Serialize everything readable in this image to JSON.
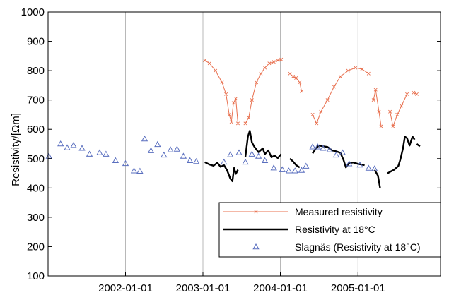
{
  "chart_data": {
    "type": "line",
    "title": "",
    "xlabel": "",
    "ylabel": "Resistivity/[Ωm]",
    "ylim": [
      100,
      1000
    ],
    "xlim": [
      "2001-01-01",
      "2006-01-25"
    ],
    "x_ticks": [
      "2002-01-01",
      "2003-01-01",
      "2004-01-01",
      "2005-01-01"
    ],
    "y_ticks": [
      100,
      200,
      300,
      400,
      500,
      600,
      700,
      800,
      900,
      1000
    ],
    "grid": "vertical",
    "legend_position": "bottom-right",
    "legend": [
      {
        "label": "Measured resistivity",
        "color": "#e8704f",
        "marker": "x"
      },
      {
        "label": "Resistivity at 18°C",
        "color": "#000000",
        "marker": "none"
      },
      {
        "label": "Slagnäs (Resistivity at 18°C)",
        "color": "#5a6fbf",
        "marker": "triangle"
      }
    ],
    "series": [
      {
        "name": "Measured resistivity",
        "color": "#e8704f",
        "style": "line-x",
        "segments": [
          [
            [
              "2003-01-10",
              835
            ],
            [
              "2003-02-01",
              825
            ],
            [
              "2003-03-01",
              800
            ],
            [
              "2003-04-01",
              760
            ],
            [
              "2003-04-20",
              720
            ],
            [
              "2003-05-05",
              650
            ],
            [
              "2003-05-15",
              625
            ],
            [
              "2003-05-25",
              690
            ],
            [
              "2003-06-05",
              705
            ],
            [
              "2003-06-15",
              620
            ]
          ],
          [
            [
              "2003-07-20",
              620
            ],
            [
              "2003-08-05",
              640
            ],
            [
              "2003-08-20",
              700
            ],
            [
              "2003-09-10",
              760
            ],
            [
              "2003-10-01",
              790
            ],
            [
              "2003-10-20",
              810
            ],
            [
              "2003-11-10",
              825
            ],
            [
              "2003-12-01",
              830
            ],
            [
              "2003-12-20",
              835
            ],
            [
              "2004-01-05",
              838
            ]
          ],
          [
            [
              "2004-02-15",
              790
            ],
            [
              "2004-03-01",
              780
            ],
            [
              "2004-03-15",
              775
            ],
            [
              "2004-04-01",
              760
            ],
            [
              "2004-04-10",
              730
            ]
          ],
          [
            [
              "2004-06-01",
              650
            ],
            [
              "2004-06-20",
              620
            ],
            [
              "2004-07-10",
              660
            ],
            [
              "2004-08-10",
              700
            ],
            [
              "2004-09-10",
              745
            ],
            [
              "2004-10-10",
              780
            ],
            [
              "2004-11-15",
              800
            ],
            [
              "2004-12-20",
              810
            ],
            [
              "2005-01-20",
              805
            ],
            [
              "2005-02-20",
              790
            ]
          ],
          [
            [
              "2005-03-15",
              700
            ],
            [
              "2005-03-25",
              735
            ],
            [
              "2005-04-10",
              660
            ],
            [
              "2005-04-20",
              610
            ]
          ],
          [
            [
              "2005-06-01",
              660
            ],
            [
              "2005-06-15",
              610
            ],
            [
              "2005-07-05",
              650
            ],
            [
              "2005-07-25",
              680
            ],
            [
              "2005-08-20",
              720
            ]
          ],
          [
            [
              "2005-09-20",
              725
            ],
            [
              "2005-10-05",
              720
            ]
          ]
        ]
      },
      {
        "name": "Resistivity at 18°C",
        "color": "#000000",
        "style": "line",
        "segments": [
          [
            [
              "2003-01-10",
              488
            ],
            [
              "2003-02-01",
              480
            ],
            [
              "2003-02-20",
              476
            ],
            [
              "2003-03-10",
              486
            ],
            [
              "2003-03-25",
              472
            ],
            [
              "2003-04-10",
              478
            ],
            [
              "2003-04-25",
              460
            ],
            [
              "2003-05-10",
              432
            ],
            [
              "2003-05-20",
              423
            ],
            [
              "2003-05-28",
              468
            ],
            [
              "2003-06-05",
              448
            ],
            [
              "2003-06-15",
              462
            ]
          ],
          [
            [
              "2003-07-20",
              505
            ],
            [
              "2003-08-01",
              575
            ],
            [
              "2003-08-10",
              595
            ],
            [
              "2003-08-20",
              555
            ],
            [
              "2003-09-01",
              540
            ],
            [
              "2003-09-20",
              522
            ],
            [
              "2003-10-10",
              535
            ],
            [
              "2003-10-20",
              515
            ],
            [
              "2003-11-05",
              528
            ],
            [
              "2003-11-20",
              505
            ],
            [
              "2003-12-05",
              510
            ],
            [
              "2003-12-20",
              502
            ],
            [
              "2004-01-05",
              515
            ]
          ],
          [
            [
              "2004-02-15",
              500
            ],
            [
              "2004-03-01",
              490
            ],
            [
              "2004-03-15",
              478
            ],
            [
              "2004-04-01",
              470
            ]
          ],
          [
            [
              "2004-06-01",
              518
            ],
            [
              "2004-06-15",
              533
            ],
            [
              "2004-07-01",
              545
            ],
            [
              "2004-07-20",
              542
            ],
            [
              "2004-08-10",
              540
            ],
            [
              "2004-09-01",
              528
            ],
            [
              "2004-09-20",
              525
            ],
            [
              "2004-10-10",
              520
            ],
            [
              "2004-10-25",
              495
            ],
            [
              "2004-11-05",
              470
            ],
            [
              "2004-11-20",
              485
            ],
            [
              "2004-12-10",
              487
            ],
            [
              "2005-01-01",
              482
            ],
            [
              "2005-02-01",
              478
            ]
          ],
          [
            [
              "2005-03-20",
              462
            ],
            [
              "2005-04-05",
              442
            ],
            [
              "2005-04-15",
              400
            ]
          ],
          [
            [
              "2005-05-20",
              450
            ],
            [
              "2005-06-01",
              455
            ],
            [
              "2005-06-20",
              462
            ],
            [
              "2005-07-10",
              475
            ],
            [
              "2005-07-20",
              498
            ],
            [
              "2005-08-01",
              535
            ],
            [
              "2005-08-10",
              575
            ],
            [
              "2005-08-20",
              570
            ],
            [
              "2005-09-01",
              545
            ],
            [
              "2005-09-15",
              575
            ],
            [
              "2005-09-25",
              565
            ]
          ],
          [
            [
              "2005-10-05",
              550
            ],
            [
              "2005-10-20",
              542
            ]
          ]
        ]
      },
      {
        "name": "Slagnäs (Resistivity at 18°C)",
        "color": "#5a6fbf",
        "style": "triangle-markers",
        "points": [
          [
            "2001-01-05",
            508
          ],
          [
            "2001-03-01",
            550
          ],
          [
            "2001-04-01",
            537
          ],
          [
            "2001-05-01",
            545
          ],
          [
            "2001-06-10",
            535
          ],
          [
            "2001-07-15",
            515
          ],
          [
            "2001-09-01",
            520
          ],
          [
            "2001-10-01",
            515
          ],
          [
            "2001-11-15",
            493
          ],
          [
            "2002-01-01",
            483
          ],
          [
            "2002-02-10",
            458
          ],
          [
            "2002-03-10",
            457
          ],
          [
            "2002-04-01",
            567
          ],
          [
            "2002-05-01",
            527
          ],
          [
            "2002-06-01",
            548
          ],
          [
            "2002-07-01",
            512
          ],
          [
            "2002-08-01",
            530
          ],
          [
            "2002-09-01",
            532
          ],
          [
            "2002-10-01",
            508
          ],
          [
            "2002-11-01",
            493
          ],
          [
            "2002-12-01",
            490
          ],
          [
            "2003-04-10",
            488
          ],
          [
            "2003-05-10",
            513
          ],
          [
            "2003-06-20",
            520
          ],
          [
            "2003-07-20",
            488
          ],
          [
            "2003-08-20",
            515
          ],
          [
            "2003-09-20",
            508
          ],
          [
            "2003-10-20",
            493
          ],
          [
            "2003-12-01",
            468
          ],
          [
            "2004-01-10",
            462
          ],
          [
            "2004-02-10",
            458
          ],
          [
            "2004-03-10",
            458
          ],
          [
            "2004-04-10",
            460
          ],
          [
            "2004-05-01",
            474
          ],
          [
            "2004-06-01",
            540
          ],
          [
            "2004-06-25",
            540
          ],
          [
            "2004-07-20",
            535
          ],
          [
            "2004-08-20",
            530
          ],
          [
            "2004-09-20",
            512
          ],
          [
            "2004-10-20",
            520
          ],
          [
            "2004-11-20",
            482
          ],
          [
            "2005-01-10",
            478
          ],
          [
            "2005-02-20",
            467
          ],
          [
            "2005-03-20",
            465
          ]
        ]
      }
    ]
  }
}
